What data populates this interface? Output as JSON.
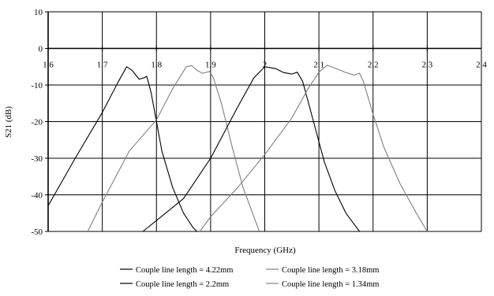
{
  "chart_data": {
    "type": "line",
    "xlabel": "Frequency (GHz)",
    "ylabel": "S21 (dB)",
    "xlim": [
      1.6,
      2.4
    ],
    "ylim": [
      -50,
      10
    ],
    "x_ticks": [
      "1.6",
      "1.7",
      "1.8",
      "1.9",
      "2",
      "2.1",
      "2.2",
      "2.3",
      "2.4"
    ],
    "y_ticks": [
      "10",
      "0",
      "-10",
      "-20",
      "-30",
      "-40",
      "-50"
    ],
    "grid": true,
    "legend_position": "bottom",
    "series": [
      {
        "name": "Couple line length = 4.22mm",
        "color": "#000000",
        "points": [
          [
            1.6,
            -43
          ],
          [
            1.65,
            -30
          ],
          [
            1.7,
            -17.5
          ],
          [
            1.73,
            -9
          ],
          [
            1.745,
            -5
          ],
          [
            1.755,
            -6
          ],
          [
            1.768,
            -8.4
          ],
          [
            1.778,
            -8
          ],
          [
            1.782,
            -7.6
          ],
          [
            1.79,
            -12
          ],
          [
            1.8,
            -20
          ],
          [
            1.81,
            -28
          ],
          [
            1.83,
            -38
          ],
          [
            1.85,
            -45
          ],
          [
            1.868,
            -49
          ],
          [
            1.875,
            -50
          ]
        ]
      },
      {
        "name": "Couple line length = 3.18mm",
        "color": "#808080",
        "points": [
          [
            1.673,
            -50
          ],
          [
            1.7,
            -42
          ],
          [
            1.75,
            -28
          ],
          [
            1.8,
            -19.5
          ],
          [
            1.83,
            -11
          ],
          [
            1.855,
            -5
          ],
          [
            1.865,
            -4.7
          ],
          [
            1.875,
            -6
          ],
          [
            1.885,
            -6.8
          ],
          [
            1.898,
            -6.3
          ],
          [
            1.905,
            -8
          ],
          [
            1.92,
            -15
          ],
          [
            1.94,
            -27
          ],
          [
            1.96,
            -38
          ],
          [
            1.98,
            -46
          ],
          [
            1.99,
            -50
          ]
        ]
      },
      {
        "name": "Couple line length = 2.2mm",
        "color": "#000000",
        "points": [
          [
            1.775,
            -50
          ],
          [
            1.8,
            -47
          ],
          [
            1.85,
            -41
          ],
          [
            1.9,
            -30
          ],
          [
            1.95,
            -16
          ],
          [
            1.98,
            -8
          ],
          [
            2.0,
            -5
          ],
          [
            2.02,
            -5.5
          ],
          [
            2.035,
            -6.6
          ],
          [
            2.05,
            -7
          ],
          [
            2.06,
            -6.5
          ],
          [
            2.07,
            -9
          ],
          [
            2.09,
            -20
          ],
          [
            2.11,
            -31
          ],
          [
            2.13,
            -39
          ],
          [
            2.15,
            -45
          ],
          [
            2.17,
            -49
          ],
          [
            2.175,
            -50
          ]
        ]
      },
      {
        "name": "Couple line length = 1.34mm",
        "color": "#808080",
        "points": [
          [
            1.88,
            -50
          ],
          [
            1.9,
            -46
          ],
          [
            1.95,
            -38
          ],
          [
            2.0,
            -29
          ],
          [
            2.05,
            -19
          ],
          [
            2.08,
            -11
          ],
          [
            2.1,
            -6.5
          ],
          [
            2.115,
            -4.6
          ],
          [
            2.13,
            -5.4
          ],
          [
            2.15,
            -6.6
          ],
          [
            2.165,
            -7.3
          ],
          [
            2.175,
            -6.8
          ],
          [
            2.182,
            -9
          ],
          [
            2.2,
            -18
          ],
          [
            2.22,
            -27
          ],
          [
            2.25,
            -37
          ],
          [
            2.28,
            -45
          ],
          [
            2.3,
            -50
          ]
        ]
      }
    ]
  }
}
